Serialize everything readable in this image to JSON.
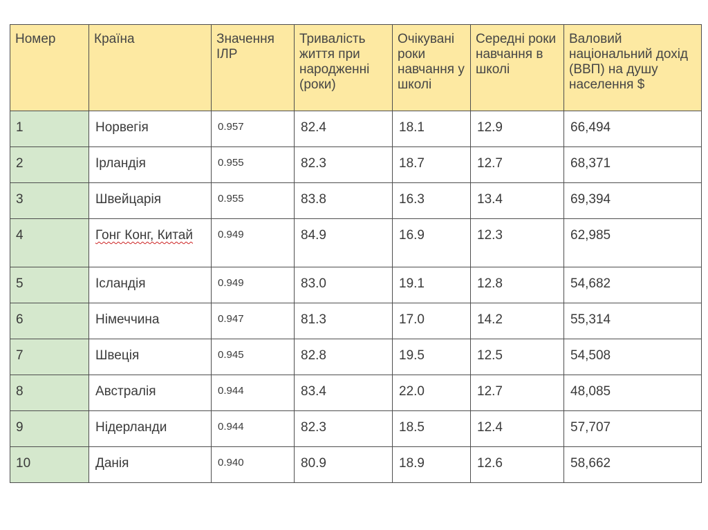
{
  "table": {
    "headers": [
      "Номер",
      "Країна",
      "Значення ІЛР",
      "Тривалість життя при народженні (роки)",
      "Очікувані роки навчання у школі",
      "Середні роки навчання в школі",
      "Валовий національний дохід (ВВП) на душу населення $"
    ],
    "rows": [
      [
        "1",
        "Норвегія",
        "0.957",
        "82.4",
        "18.1",
        "12.9",
        "66,494"
      ],
      [
        "2",
        "Ірландія",
        "0.955",
        "82.3",
        "18.7",
        "12.7",
        "68,371"
      ],
      [
        "3",
        "Швейцарія",
        "0.955",
        "83.8",
        "16.3",
        "13.4",
        "69,394"
      ],
      [
        "4",
        "Гонг Конг, Китай",
        "0.949",
        "84.9",
        "16.9",
        "12.3",
        "62,985"
      ],
      [
        "5",
        "Ісландія",
        "0.949",
        "83.0",
        "19.1",
        "12.8",
        "54,682"
      ],
      [
        "6",
        "Німеччина",
        "0.947",
        "81.3",
        "17.0",
        "14.2",
        "55,314"
      ],
      [
        "7",
        "Швеція",
        "0.945",
        "82.8",
        "19.5",
        "12.5",
        "54,508"
      ],
      [
        "8",
        "Австралія",
        "0.944",
        "83.4",
        "22.0",
        "12.7",
        "48,085"
      ],
      [
        "9",
        "Нідерланди",
        "0.944",
        "82.3",
        "18.5",
        "12.4",
        "57,707"
      ],
      [
        "10",
        "Данія",
        "0.940",
        "80.9",
        "18.9",
        "12.6",
        "58,662"
      ]
    ]
  },
  "colors": {
    "header_background": "#fde9a2",
    "number_column_background": "#d5e8cd",
    "border": "#4d4d4d",
    "spellcheck_underline": "#cc2222"
  }
}
